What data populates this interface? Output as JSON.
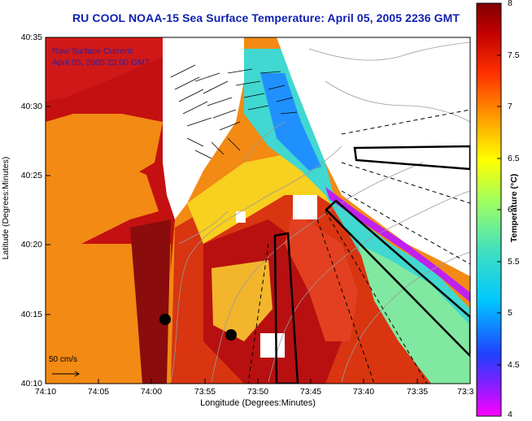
{
  "title": "RU COOL  NOAA-15  Sea Surface Temperature:  April 05, 2005 2236 GMT",
  "axes": {
    "xlabel": "Longitude (Degrees:Minutes)",
    "ylabel": "Latitude (Degrees:Minutes)",
    "xticks": [
      "74:10",
      "74:05",
      "74:00",
      "73:55",
      "73:50",
      "73:45",
      "73:40",
      "73:35",
      "73:3"
    ],
    "yticks": [
      "40:35",
      "40:30",
      "40:25",
      "40:20",
      "40:15",
      "40:10"
    ]
  },
  "colorbar": {
    "title": "Temperature (°C)",
    "ticks": [
      "8",
      "7.5",
      "7",
      "6.5",
      "6",
      "5.5",
      "5",
      "4.5",
      "4"
    ],
    "colors": [
      "#ff00ff",
      "#3030ff",
      "#00bfff",
      "#40e0d0",
      "#7fff7f",
      "#ffff00",
      "#ffa500",
      "#ff4500",
      "#b00000",
      "#7a0000"
    ]
  },
  "current_legend": {
    "line1": "Raw Surface Current:",
    "line2": "April 05, 2005 23:00 GMT"
  },
  "scale": {
    "label": "50 cm/s"
  },
  "map_colors": {
    "land": "#f28a14",
    "nodata": "#ffffff",
    "coast": "#a07060"
  }
}
